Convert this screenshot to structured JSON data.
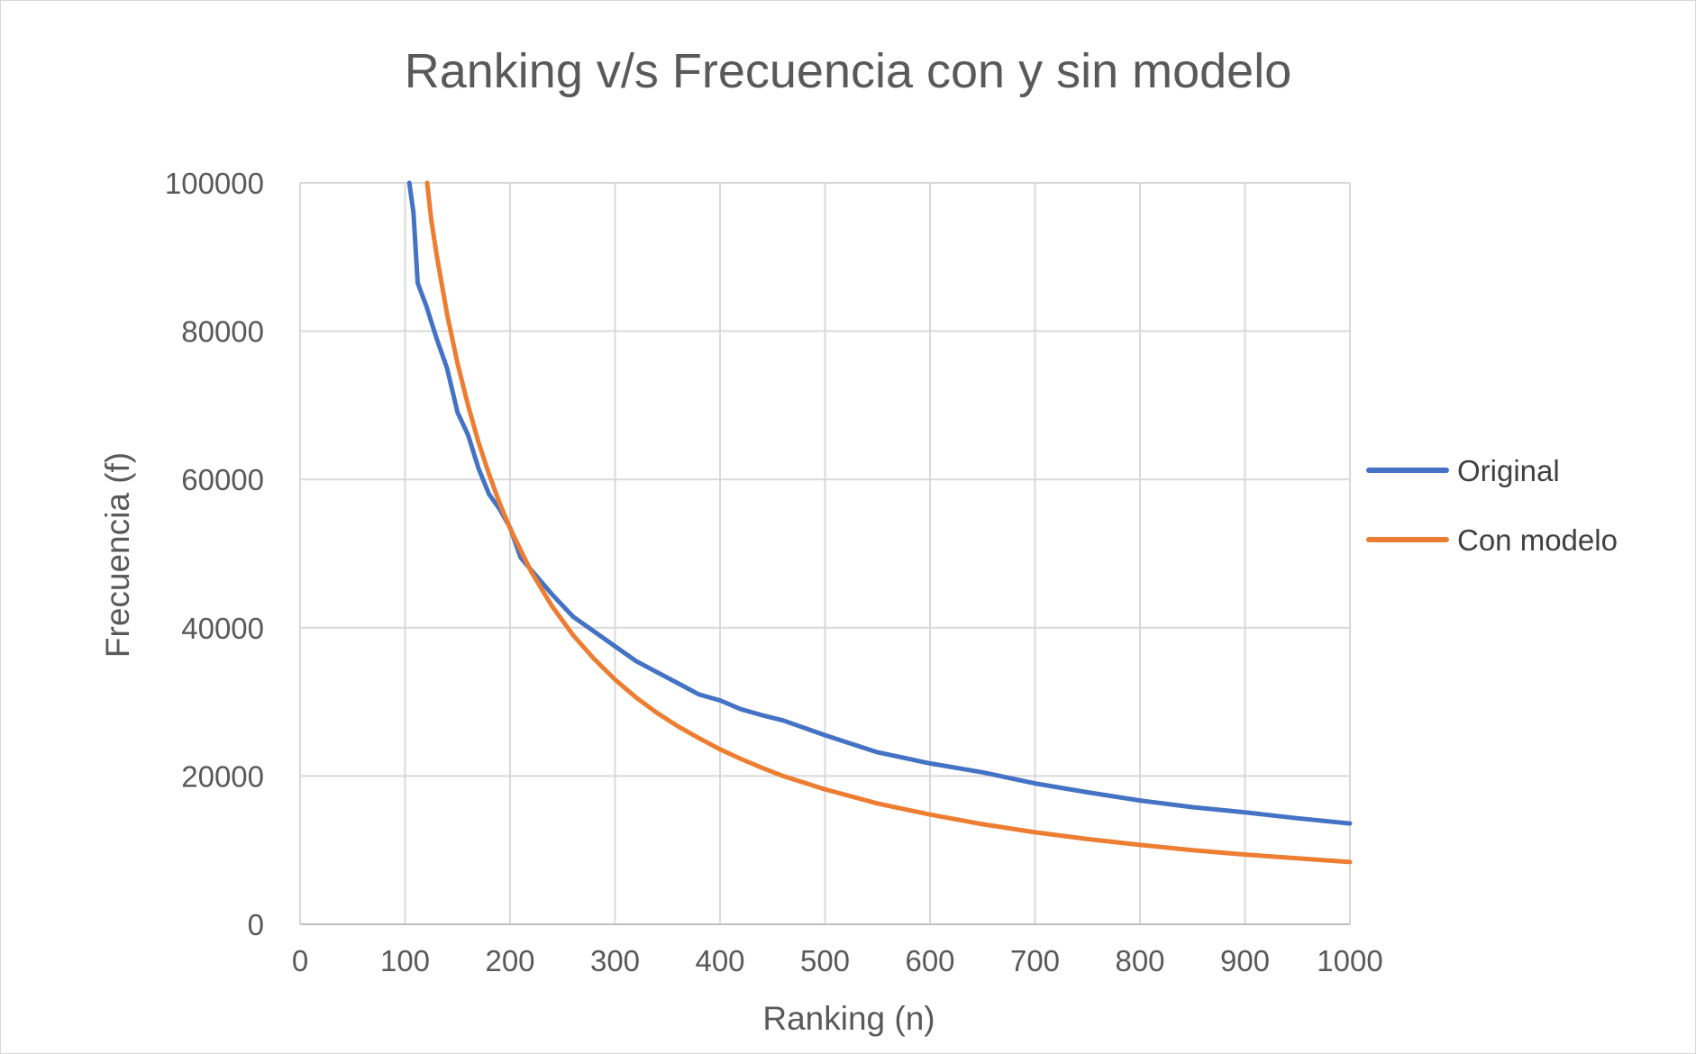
{
  "chart_data": {
    "type": "line",
    "title": "Ranking v/s Frecuencia con y sin modelo",
    "xlabel": "Ranking (n)",
    "ylabel": "Frecuencia (f)",
    "xlim": [
      0,
      1000
    ],
    "ylim": [
      0,
      100000
    ],
    "x_ticks": [
      "0",
      "100",
      "200",
      "300",
      "400",
      "500",
      "600",
      "700",
      "800",
      "900",
      "1000"
    ],
    "y_ticks": [
      "0",
      "20000",
      "40000",
      "60000",
      "80000",
      "100000"
    ],
    "grid": true,
    "legend_position": "right",
    "series": [
      {
        "name": "Original",
        "color": "#4472C4",
        "x": [
          104,
          108,
          112,
          116,
          120,
          130,
          140,
          150,
          160,
          170,
          180,
          190,
          200,
          210,
          220,
          240,
          260,
          280,
          300,
          320,
          340,
          360,
          380,
          400,
          420,
          440,
          460,
          480,
          500,
          550,
          600,
          650,
          700,
          750,
          800,
          850,
          900,
          950,
          1000
        ],
        "y": [
          100000,
          96000,
          86500,
          85000,
          83500,
          79000,
          75000,
          69000,
          66000,
          61500,
          58000,
          56000,
          53500,
          49500,
          47800,
          44500,
          41500,
          39500,
          37500,
          35500,
          34000,
          32500,
          31000,
          30200,
          29000,
          28200,
          27500,
          26500,
          25500,
          23200,
          21700,
          20500,
          19000,
          17800,
          16700,
          15800,
          15100,
          14300,
          13600
        ]
      },
      {
        "name": "Con modelo",
        "color": "#ED7D31",
        "x": [
          121,
          125,
          130,
          140,
          150,
          160,
          170,
          180,
          190,
          200,
          220,
          240,
          260,
          280,
          300,
          320,
          340,
          360,
          380,
          400,
          420,
          440,
          460,
          480,
          500,
          550,
          600,
          650,
          700,
          750,
          800,
          850,
          900,
          950,
          1000
        ],
        "y": [
          100000,
          95000,
          90300,
          82300,
          75600,
          70000,
          65000,
          60700,
          56800,
          53400,
          47600,
          42900,
          39000,
          35800,
          33000,
          30600,
          28500,
          26700,
          25100,
          23600,
          22300,
          21100,
          20000,
          19100,
          18200,
          16300,
          14800,
          13500,
          12400,
          11500,
          10700,
          10000,
          9400,
          8900,
          8400
        ]
      }
    ]
  }
}
